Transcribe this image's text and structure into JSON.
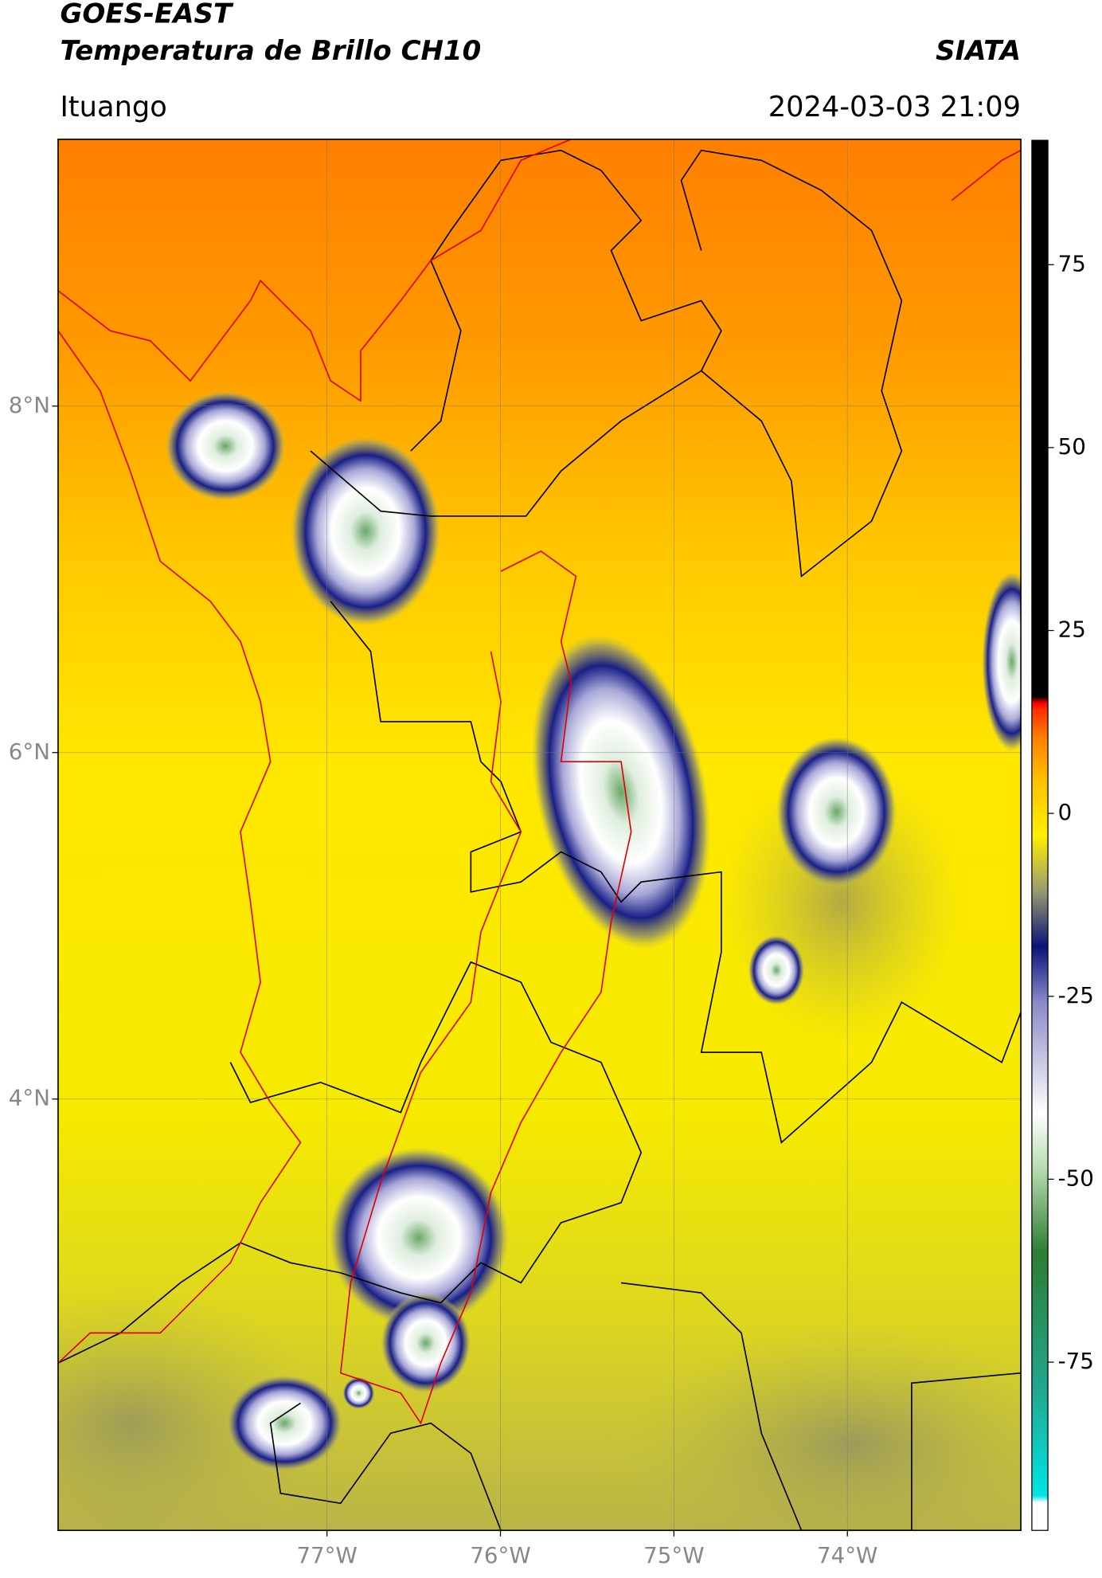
{
  "header": {
    "title": "GOES-EAST",
    "subtitle": "Temperatura de Brillo CH10",
    "source": "SIATA",
    "location": "Ituango",
    "datetime": "2024-03-03 21:09"
  },
  "map": {
    "xlim": [
      -78.55,
      -73.0
    ],
    "ylim": [
      1.51,
      9.54
    ],
    "xticks": [
      {
        "value": -77,
        "label": "77°W"
      },
      {
        "value": -76,
        "label": "76°W"
      },
      {
        "value": -75,
        "label": "75°W"
      },
      {
        "value": -74,
        "label": "74°W"
      }
    ],
    "yticks": [
      {
        "value": 8,
        "label": "8°N"
      },
      {
        "value": 6,
        "label": "6°N"
      },
      {
        "value": 4,
        "label": "4°N"
      }
    ],
    "grid": true
  },
  "colorbar": {
    "lim": [
      -98,
      92
    ],
    "ticks": [
      75,
      50,
      25,
      0,
      -25,
      -50,
      -75
    ]
  }
}
